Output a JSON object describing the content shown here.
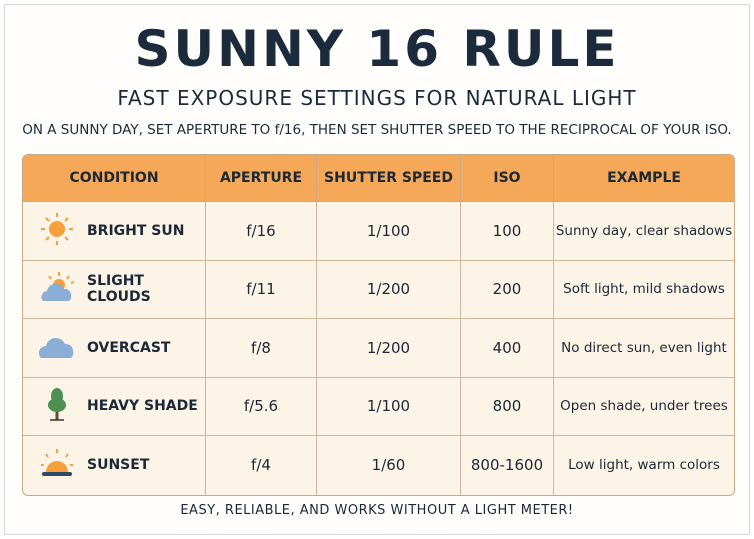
{
  "title": "SUNNY 16 RULE",
  "subtitle": "FAST EXPOSURE SETTINGS FOR NATURAL LIGHT",
  "intro": "ON A SUNNY DAY, SET APERTURE TO f/16, THEN SET SHUTTER SPEED TO THE RECIPROCAL OF YOUR ISO.",
  "headers": [
    "CONDITION",
    "APERTURE",
    "SHUTTER SPEED",
    "ISO",
    "EXAMPLE"
  ],
  "rows": [
    {
      "icon": "sun-icon",
      "condition": "BRIGHT SUN",
      "aperture": "f/16",
      "shutter": "1/100",
      "iso": "100",
      "example": "Sunny day, clear shadows"
    },
    {
      "icon": "sun-behind-cloud-icon",
      "condition": "SLIGHT CLOUDS",
      "aperture": "f/11",
      "shutter": "1/200",
      "iso": "200",
      "example": "Soft light, mild shadows"
    },
    {
      "icon": "cloud-icon",
      "condition": "OVERCAST",
      "aperture": "f/8",
      "shutter": "1/200",
      "iso": "400",
      "example": "No direct sun, even light"
    },
    {
      "icon": "tree-icon",
      "condition": "HEAVY SHADE",
      "aperture": "f/5.6",
      "shutter": "1/100",
      "iso": "800",
      "example": "Open shade, under trees"
    },
    {
      "icon": "sunset-icon",
      "condition": "SUNSET",
      "aperture": "f/4",
      "shutter": "1/60",
      "iso": "800-1600",
      "example": "Low light, warm colors"
    }
  ],
  "footer": "EASY, RELIABLE, AND WORKS WITHOUT A LIGHT METER!",
  "colors": {
    "header": "#f5a857",
    "row": "#fdf4e8",
    "text": "#1b2838",
    "sun": "#f5a03a",
    "cloud": "#8aaed6",
    "tree": "#4e8f52"
  }
}
